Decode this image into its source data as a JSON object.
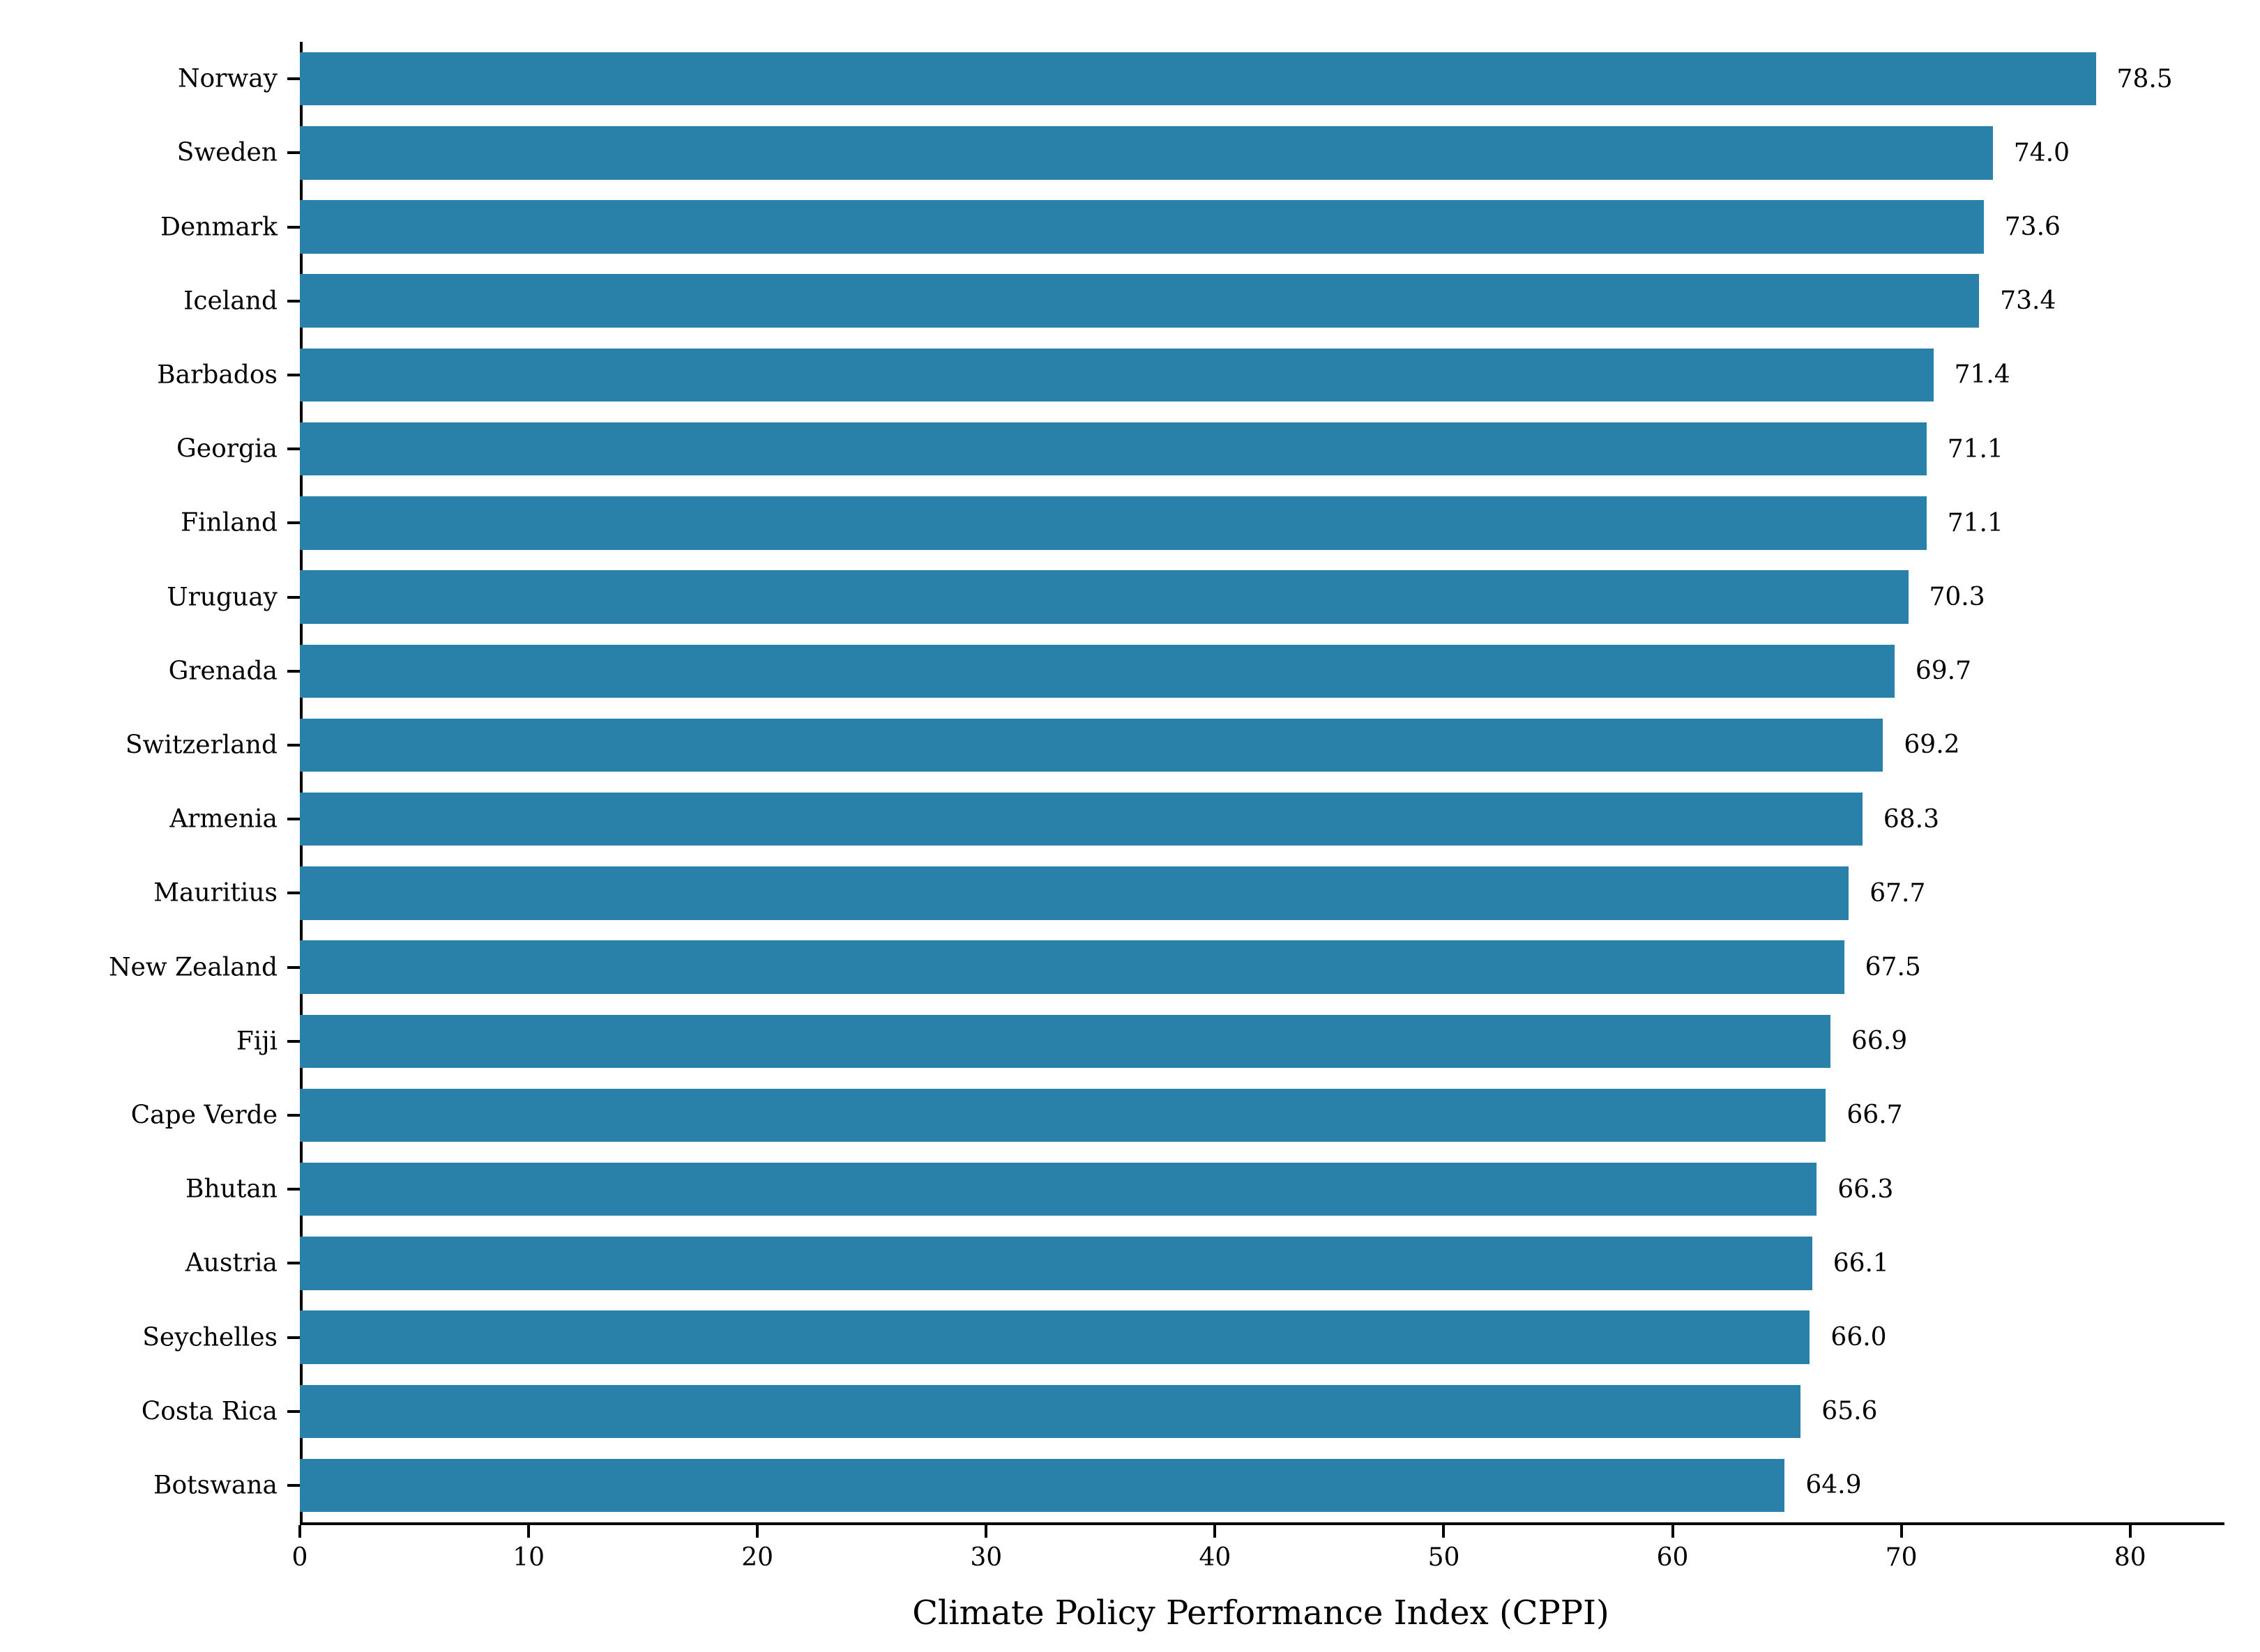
{
  "chart_data": {
    "type": "bar",
    "orientation": "horizontal",
    "title": "",
    "xlabel": "Climate Policy Performance Index (CPPI)",
    "ylabel": "",
    "categories": [
      "Norway",
      "Sweden",
      "Denmark",
      "Iceland",
      "Barbados",
      "Georgia",
      "Finland",
      "Uruguay",
      "Grenada",
      "Switzerland",
      "Armenia",
      "Mauritius",
      "New Zealand",
      "Fiji",
      "Cape Verde",
      "Bhutan",
      "Austria",
      "Seychelles",
      "Costa Rica",
      "Botswana"
    ],
    "values": [
      78.5,
      74.0,
      73.6,
      73.4,
      71.4,
      71.1,
      71.1,
      70.3,
      69.7,
      69.2,
      68.3,
      67.7,
      67.5,
      66.9,
      66.7,
      66.3,
      66.1,
      66.0,
      65.6,
      64.9
    ],
    "value_labels": [
      "78.5",
      "74.0",
      "73.6",
      "73.4",
      "71.4",
      "71.1",
      "71.1",
      "70.3",
      "69.7",
      "69.2",
      "68.3",
      "67.7",
      "67.5",
      "66.9",
      "66.7",
      "66.3",
      "66.1",
      "66.0",
      "65.6",
      "64.9"
    ],
    "xlim": [
      0,
      84
    ],
    "xticks": [
      0,
      10,
      20,
      30,
      40,
      50,
      60,
      70,
      80
    ],
    "bar_color": "#2980a8",
    "axis_color": "#000000",
    "grid": false,
    "legend_position": "none"
  }
}
